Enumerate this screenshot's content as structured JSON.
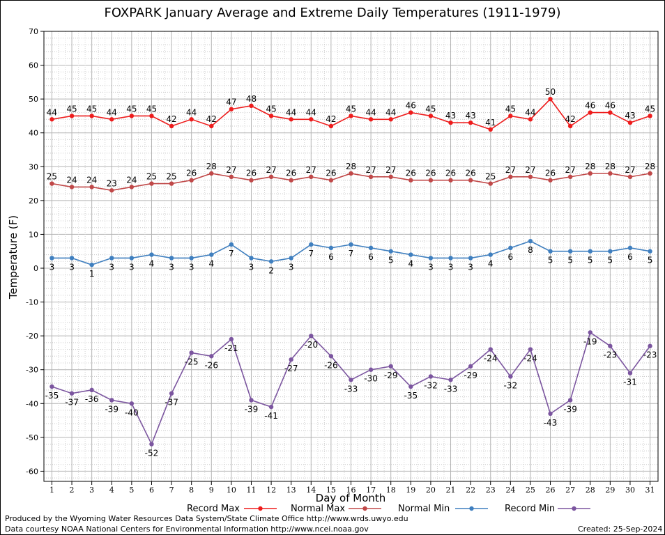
{
  "page": {
    "footer_left_1": "Produced by the Wyoming Water Resources Data System/State Climate Office http://www.wrds.uwyo.edu",
    "footer_left_2": "Data courtesy NOAA National Centers for Environmental Information http://www.ncei.noaa.gov",
    "footer_right": "Created:  25-Sep-2024"
  },
  "chart_data": {
    "type": "line",
    "title": "FOXPARK January Average and Extreme Daily Temperatures (1911-1979)",
    "xlabel": "Day of Month",
    "ylabel": "Temperature (F)",
    "x": [
      1,
      2,
      3,
      4,
      5,
      6,
      7,
      8,
      9,
      10,
      11,
      12,
      13,
      14,
      15,
      16,
      17,
      18,
      19,
      20,
      21,
      22,
      23,
      24,
      25,
      26,
      27,
      28,
      29,
      30,
      31
    ],
    "xlim": [
      0.6,
      31.4
    ],
    "ylim": [
      -63,
      70
    ],
    "yticks": [
      -60,
      -50,
      -40,
      -30,
      -20,
      -10,
      0,
      10,
      20,
      30,
      40,
      50,
      60,
      70
    ],
    "grid": true,
    "legend_position": "bottom",
    "series": [
      {
        "name": "Record Max",
        "color": "#ee1c1c",
        "values": [
          44,
          45,
          45,
          44,
          45,
          45,
          42,
          44,
          42,
          47,
          48,
          45,
          44,
          44,
          42,
          45,
          44,
          44,
          46,
          45,
          43,
          43,
          41,
          45,
          44,
          50,
          42,
          46,
          46,
          43,
          45
        ]
      },
      {
        "name": "Normal Max",
        "color": "#c04848",
        "values": [
          25,
          24,
          24,
          23,
          24,
          25,
          25,
          26,
          28,
          27,
          26,
          27,
          26,
          27,
          26,
          28,
          27,
          27,
          26,
          26,
          26,
          26,
          25,
          27,
          27,
          26,
          27,
          28,
          28,
          27,
          28
        ]
      },
      {
        "name": "Normal Min",
        "color": "#3f7fbf",
        "values": [
          3,
          3,
          1,
          3,
          3,
          4,
          3,
          3,
          4,
          7,
          3,
          2,
          3,
          7,
          6,
          7,
          6,
          5,
          4,
          3,
          3,
          3,
          4,
          6,
          8,
          5,
          5,
          5,
          5,
          6,
          5
        ]
      },
      {
        "name": "Record Min",
        "color": "#7b559f",
        "values": [
          -35,
          -37,
          -36,
          -39,
          -40,
          -52,
          -37,
          -25,
          -26,
          -21,
          -39,
          -41,
          -27,
          -20,
          -26,
          -33,
          -30,
          -29,
          -35,
          -32,
          -33,
          -29,
          -24,
          -32,
          -24,
          -43,
          -39,
          -19,
          -23,
          -31,
          -23
        ]
      }
    ]
  }
}
